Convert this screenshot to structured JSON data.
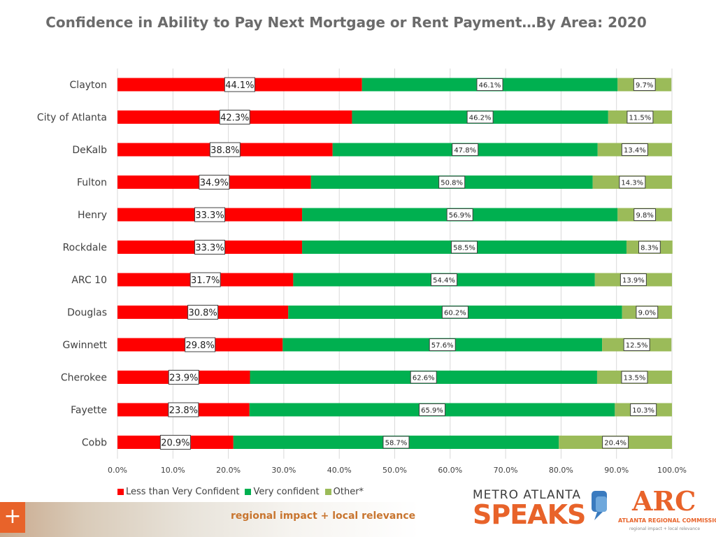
{
  "chart_data": {
    "type": "bar",
    "orientation": "horizontal",
    "stacked": true,
    "title": "Confidence in Ability to Pay Next Mortgage or Rent Payment…By Area: 2020",
    "categories": [
      "Clayton",
      "City of Atlanta",
      "DeKalb",
      "Fulton",
      "Henry",
      "Rockdale",
      "ARC 10",
      "Douglas",
      "Gwinnett",
      "Cherokee",
      "Fayette",
      "Cobb"
    ],
    "series": [
      {
        "name": "Less than Very Confident",
        "color": "#ff0000",
        "values": [
          44.1,
          42.3,
          38.8,
          34.9,
          33.3,
          33.3,
          31.7,
          30.8,
          29.8,
          23.9,
          23.8,
          20.9
        ],
        "labels": [
          "44.1%",
          "42.3%",
          "38.8%",
          "34.9%",
          "33.3%",
          "33.3%",
          "31.7%",
          "30.8%",
          "29.8%",
          "23.9%",
          "23.8%",
          "20.9%"
        ]
      },
      {
        "name": "Very confident",
        "color": "#00b050",
        "values": [
          46.1,
          46.2,
          47.8,
          50.8,
          56.9,
          58.5,
          54.4,
          60.2,
          57.6,
          62.6,
          65.9,
          58.7
        ],
        "labels": [
          "46.1%",
          "46.2%",
          "47.8%",
          "50.8%",
          "56.9%",
          "58.5%",
          "54.4%",
          "60.2%",
          "57.6%",
          "62.6%",
          "65.9%",
          "58.7%"
        ]
      },
      {
        "name": "Other*",
        "color": "#9bbb59",
        "values": [
          9.7,
          11.5,
          13.4,
          14.3,
          9.8,
          8.3,
          13.9,
          9.0,
          12.5,
          13.5,
          10.3,
          20.4
        ],
        "labels": [
          "9.7%",
          "11.5%",
          "13.4%",
          "14.3%",
          "9.8%",
          "8.3%",
          "13.9%",
          "9.0%",
          "12.5%",
          "13.5%",
          "10.3%",
          "20.4%"
        ]
      }
    ],
    "xlim": [
      0,
      100
    ],
    "x_ticks": [
      "0.0%",
      "10.0%",
      "20.0%",
      "30.0%",
      "40.0%",
      "50.0%",
      "60.0%",
      "70.0%",
      "80.0%",
      "90.0%",
      "100.0%"
    ],
    "grid": true,
    "legend_position": "bottom-left"
  },
  "footer": {
    "tagline": "regional impact + local relevance",
    "plus_symbol": "+",
    "logo_mas_top": "METRO ATLANTA",
    "logo_mas_bottom": "SPEAKS",
    "logo_arc_letters": "ARC",
    "logo_arc_name": "ATLANTA REGIONAL COMMISSION",
    "logo_arc_tagline": "regional impact + local relevance"
  }
}
